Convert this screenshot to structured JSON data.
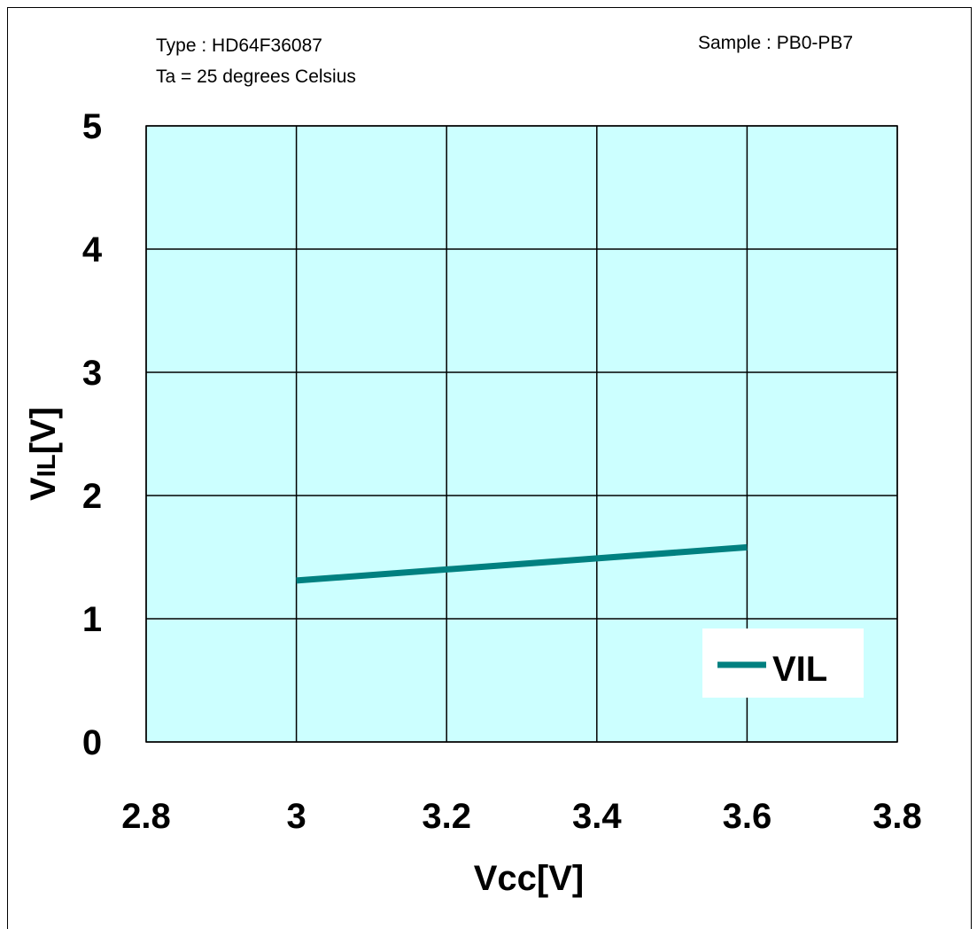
{
  "annotations": {
    "type": "Type : HD64F36087",
    "temp": "Ta = 25 degrees Celsius",
    "sample": "Sample : PB0-PB7"
  },
  "chart_data": {
    "type": "line",
    "xlabel": "Vcc[V]",
    "ylabel_main": "V",
    "ylabel_sub": "IL",
    "ylabel_suffix": "[V]",
    "xlim": [
      2.8,
      3.8
    ],
    "ylim": [
      0,
      5
    ],
    "xticks": [
      "2.8",
      "3",
      "3.2",
      "3.4",
      "3.6",
      "3.8"
    ],
    "yticks": [
      "0",
      "1",
      "2",
      "3",
      "4",
      "5"
    ],
    "grid": true,
    "legend": "bottom-right",
    "plot_bg": "#ccffff",
    "series": [
      {
        "name": "VIL",
        "color": "#008080",
        "x": [
          3.0,
          3.6
        ],
        "y": [
          1.31,
          1.58
        ]
      }
    ]
  }
}
